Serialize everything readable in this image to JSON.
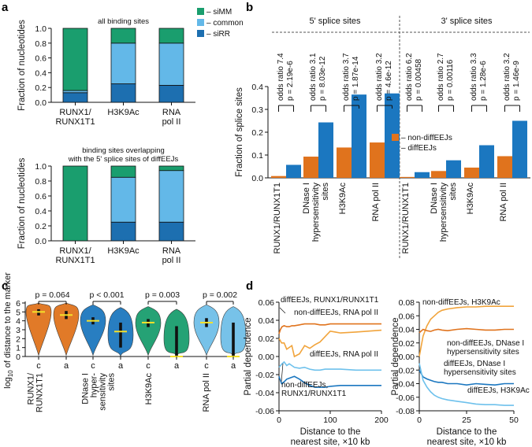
{
  "panel_labels": {
    "a": "a",
    "b": "b",
    "c": "c",
    "d": "d"
  },
  "colors": {
    "siMM": "#1a9e6e",
    "common": "#63b8e8",
    "siRR": "#1d6fb0",
    "orange": "#e0731d",
    "blue": "#1b77c0",
    "light_orange": "#f1a43c",
    "light_blue": "#6ec1ec",
    "violin_green": "#1a9e6e",
    "violin_blue": "#1d78be",
    "violin_light": "#70bfe8",
    "median": "#f5e12a"
  },
  "chart_data": [
    {
      "id": "a1",
      "type": "bar",
      "stacked": true,
      "title": "all binding sites",
      "ylabel": "Fraction of nucleotides",
      "ylim": [
        0,
        1
      ],
      "yticks": [
        "0.0",
        "0.2",
        "0.4",
        "0.6",
        "0.8",
        "1.0"
      ],
      "categories": [
        "RUNX1/RUNX1T1",
        "H3K9Ac",
        "RNA pol II"
      ],
      "category_lines": [
        [
          "RUNX1/",
          "RUNX1T1"
        ],
        [
          "H3K9Ac"
        ],
        [
          "RNA",
          "pol II"
        ]
      ],
      "series": [
        {
          "name": "siRR",
          "values": [
            0.13,
            0.25,
            0.23
          ]
        },
        {
          "name": "common",
          "values": [
            0.03,
            0.55,
            0.57
          ]
        },
        {
          "name": "siMM",
          "values": [
            0.84,
            0.2,
            0.2
          ]
        }
      ],
      "legend": [
        "– siMM",
        "– common",
        "– siRR"
      ]
    },
    {
      "id": "a2",
      "type": "bar",
      "stacked": true,
      "title_lines": [
        "binding sites overlapping",
        "with the 5' splice sites of diffEEJs"
      ],
      "ylabel": "Fraction of nucleotides",
      "ylim": [
        0,
        1
      ],
      "yticks": [
        "0.0",
        "0.2",
        "0.4",
        "0.6",
        "0.8",
        "1.0"
      ],
      "categories": [
        "RUNX1/RUNX1T1",
        "H3K9Ac",
        "RNA pol II"
      ],
      "category_lines": [
        [
          "RUNX1/",
          "RUNX1T1"
        ],
        [
          "H3K9Ac"
        ],
        [
          "RNA",
          "pol II"
        ]
      ],
      "series": [
        {
          "name": "siRR",
          "values": [
            0.0,
            0.25,
            0.25
          ]
        },
        {
          "name": "common",
          "values": [
            0.0,
            0.6,
            0.69
          ]
        },
        {
          "name": "siMM",
          "values": [
            1.0,
            0.15,
            0.06
          ]
        }
      ]
    },
    {
      "id": "b",
      "type": "bar",
      "ylabel": "Fraction of splice sites",
      "ylim": [
        0,
        0.4
      ],
      "yticks": [
        "0.0",
        "0.1",
        "0.2",
        "0.3",
        "0.4"
      ],
      "group_titles": [
        "5' splice sites",
        "3' splice sites"
      ],
      "categories": [
        "RUNX1/RUNX1T1",
        "DNase I hypersensitivity sites",
        "H3K9Ac",
        "RNA pol II",
        "RUNX1/RUNX1T1",
        "DNase I hypersensitivity sites",
        "H3K9Ac",
        "RNA pol II"
      ],
      "category_lines": [
        [
          "RUNX1/RUNX1T1"
        ],
        [
          "DNase I",
          "hypersensitivity",
          "sites"
        ],
        [
          "H3K9Ac"
        ],
        [
          "RNA pol II"
        ],
        [
          "RUNX1/RUNX1T1"
        ],
        [
          "DNase I",
          "hypersensitivity",
          "sites"
        ],
        [
          "H3K9Ac"
        ],
        [
          "RNA pol II"
        ]
      ],
      "series": [
        {
          "name": "non-diffEEJs",
          "values": [
            0.008,
            0.093,
            0.133,
            0.155,
            0.004,
            0.03,
            0.045,
            0.095
          ]
        },
        {
          "name": "diffEEJs",
          "values": [
            0.057,
            0.243,
            0.365,
            0.37,
            0.025,
            0.077,
            0.143,
            0.25
          ]
        }
      ],
      "annotations": [
        {
          "odds": "odds ratio 7.4",
          "p": "p = 2.19e-6"
        },
        {
          "odds": "odds ratio 3.1",
          "p": "p = 8.03e-12"
        },
        {
          "odds": "odds ratio 3.7",
          "p": "p = 1.87e-14"
        },
        {
          "odds": "odds ratio 3.2",
          "p": "p = 4.6e-12"
        },
        {
          "odds": "odds ratio 6.2",
          "p": "p = 0.00458"
        },
        {
          "odds": "odds ratio 2.7",
          "p": "p = 0.00116"
        },
        {
          "odds": "odds ratio 3.3",
          "p": "p = 1.28e-6"
        },
        {
          "odds": "odds ratio 3.2",
          "p": "p = 1.46e-9"
        }
      ],
      "legend": [
        "– non-diffEEJs",
        "– diffEEJs"
      ]
    },
    {
      "id": "c",
      "type": "violin",
      "ylabel_prefix": "log",
      "ylabel_sub": "10",
      "ylabel_rest": " of distance to the marker",
      "ylim": [
        0,
        6
      ],
      "yticks": [
        "0",
        "1",
        "2",
        "3",
        "4",
        "5",
        "6"
      ],
      "pvalues": [
        "p = 0.064",
        "p < 0.001",
        "p = 0.003",
        "p = 0.002"
      ],
      "groups": [
        {
          "lines": [
            "RUNX1/",
            "RUNX1T1"
          ],
          "color": "orange",
          "violins": [
            {
              "label": "c",
              "median": 5.0,
              "q1": 4.6,
              "q3": 5.3,
              "min": 0.1,
              "max": 6.0
            },
            {
              "label": "a",
              "median": 4.65,
              "q1": 4.2,
              "q3": 5.1,
              "min": 0.1,
              "max": 6.0
            }
          ]
        },
        {
          "lines": [
            "DNase I",
            "hyper-",
            "sensitivity",
            "sites"
          ],
          "color": "violin_blue",
          "violins": [
            {
              "label": "c",
              "median": 4.0,
              "q1": 3.6,
              "q3": 4.4,
              "min": 0.1,
              "max": 5.8
            },
            {
              "label": "a",
              "median": 2.8,
              "q1": 1.0,
              "q3": 3.8,
              "min": 0.0,
              "max": 5.5
            }
          ]
        },
        {
          "lines": [
            "H3K9Ac"
          ],
          "color": "violin_green",
          "violins": [
            {
              "label": "c",
              "median": 3.8,
              "q1": 3.3,
              "q3": 4.2,
              "min": 0.1,
              "max": 5.6
            },
            {
              "label": "a",
              "median": 0.0,
              "q1": 0.0,
              "q3": 3.4,
              "min": 0.0,
              "max": 5.3
            }
          ]
        },
        {
          "lines": [
            "RNA pol II"
          ],
          "color": "violin_light",
          "violins": [
            {
              "label": "c",
              "median": 3.8,
              "q1": 3.3,
              "q3": 4.3,
              "min": 0.1,
              "max": 5.8
            },
            {
              "label": "a",
              "median": 0.0,
              "q1": 0.0,
              "q3": 3.8,
              "min": 0.0,
              "max": 5.6
            }
          ]
        }
      ]
    },
    {
      "id": "d1",
      "type": "line",
      "ylabel": "Partial dependence",
      "xlabel": [
        "Distance to the",
        "nearest site, ×10 kb"
      ],
      "xlim": [
        0,
        200
      ],
      "ylim": [
        -0.06,
        0.06
      ],
      "xticks": [
        "0",
        "100",
        "200"
      ],
      "yticks": [
        "-0.06",
        "-0.04",
        "-0.02",
        "0.00",
        "0.02",
        "0.04",
        "0.06"
      ],
      "series": [
        {
          "name": "diffEEJs, RUNX1/RUNX1T1",
          "color": "orange",
          "x": [
            0,
            3,
            6,
            10,
            15,
            20,
            25,
            30,
            40,
            50,
            60,
            70,
            80,
            90,
            100,
            120,
            150,
            200
          ],
          "y": [
            0.025,
            0.03,
            0.033,
            0.034,
            0.033,
            0.033,
            0.034,
            0.034,
            0.035,
            0.036,
            0.036,
            0.036,
            0.035,
            0.035,
            0.036,
            0.036,
            0.036,
            0.036
          ]
        },
        {
          "name": "non-diffEEJs, RNA pol II",
          "color": "light_orange",
          "x": [
            0,
            5,
            10,
            15,
            20,
            25,
            30,
            40,
            50,
            60,
            70,
            80,
            90,
            100,
            110,
            120,
            150,
            200
          ],
          "y": [
            0.02,
            0.015,
            0.015,
            0.008,
            0.01,
            0.012,
            0.0,
            0.003,
            0.012,
            0.009,
            0.013,
            0.016,
            0.022,
            0.028,
            0.027,
            0.026,
            0.027,
            0.029
          ]
        },
        {
          "name": "diffEEJs, RNA pol II",
          "color": "light_blue",
          "x": [
            0,
            3,
            6,
            10,
            15,
            20,
            25,
            30,
            40,
            50,
            60,
            70,
            80,
            90,
            100,
            120,
            150,
            200
          ],
          "y": [
            -0.012,
            -0.01,
            -0.008,
            -0.006,
            -0.01,
            -0.008,
            -0.01,
            -0.012,
            -0.013,
            -0.012,
            -0.014,
            -0.015,
            -0.015,
            -0.014,
            -0.014,
            -0.014,
            -0.015,
            -0.015
          ]
        },
        {
          "name": "non-diffEEJs, RUNX1/RUNX1T1",
          "color": "blue",
          "x": [
            0,
            5,
            10,
            15,
            20,
            25,
            30,
            40,
            50,
            60,
            70,
            80,
            90,
            100,
            120,
            150,
            200
          ],
          "y": [
            -0.022,
            -0.03,
            -0.028,
            -0.025,
            -0.024,
            -0.023,
            -0.022,
            -0.025,
            -0.029,
            -0.032,
            -0.034,
            -0.034,
            -0.034,
            -0.033,
            -0.032,
            -0.032,
            -0.032
          ]
        }
      ],
      "labels": [
        {
          "series": "diffEEJs, RUNX1/RUNX1T1",
          "lines": [
            "diffEEJs, RUNX1/RUNX1T1"
          ]
        },
        {
          "series": "non-diffEEJs, RNA pol II",
          "lines": [
            "non-diffEEJs, RNA pol II"
          ]
        },
        {
          "series": "diffEEJs, RNA pol II",
          "lines": [
            "diffEEJs, RNA pol II"
          ]
        },
        {
          "series": "non-diffEEJs, RUNX1/RUNX1T1",
          "lines": [
            "non-diffEEJs,",
            "RUNX1/RUNX1T1"
          ]
        }
      ]
    },
    {
      "id": "d2",
      "type": "line",
      "ylabel": "Partial dependence",
      "xlabel": [
        "Distance to the",
        "nearest site, ×10 kb"
      ],
      "xlim": [
        0,
        50
      ],
      "ylim": [
        -0.08,
        0.08
      ],
      "xticks": [
        "0",
        "25",
        "50"
      ],
      "yticks": [
        "-0.08",
        "-0.06",
        "-0.04",
        "-0.02",
        "0.00",
        "0.02",
        "0.04",
        "0.06",
        "0.08"
      ],
      "series": [
        {
          "name": "non-diffEEJs, H3K9Ac",
          "color": "light_orange",
          "x": [
            0,
            2,
            4,
            6,
            8,
            10,
            12,
            15,
            20,
            25,
            30,
            35,
            40,
            45,
            50
          ],
          "y": [
            0.0,
            0.03,
            0.045,
            0.055,
            0.06,
            0.065,
            0.068,
            0.07,
            0.072,
            0.073,
            0.073,
            0.074,
            0.074,
            0.074,
            0.074
          ]
        },
        {
          "name": "non-diffEEJs, DNase I hypersensitivity sites",
          "color": "orange",
          "x": [
            0,
            2,
            4,
            6,
            8,
            10,
            12,
            15,
            20,
            25,
            30,
            35,
            40,
            45,
            50
          ],
          "y": [
            0.035,
            0.04,
            0.038,
            0.037,
            0.039,
            0.04,
            0.039,
            0.038,
            0.04,
            0.041,
            0.04,
            0.039,
            0.039,
            0.04,
            0.04
          ]
        },
        {
          "name": "diffEEJs, DNase I hypersensitivity sites",
          "color": "blue",
          "x": [
            0,
            2,
            4,
            6,
            8,
            10,
            12,
            15,
            20,
            25,
            30,
            35,
            40,
            45,
            50
          ],
          "y": [
            -0.02,
            -0.03,
            -0.033,
            -0.035,
            -0.037,
            -0.038,
            -0.038,
            -0.04,
            -0.04,
            -0.042,
            -0.04,
            -0.041,
            -0.042,
            -0.04,
            -0.04
          ]
        },
        {
          "name": "diffEEJs, H3K9Ac",
          "color": "light_blue",
          "x": [
            0,
            2,
            4,
            6,
            8,
            10,
            12,
            15,
            20,
            25,
            30,
            35,
            40,
            45,
            50
          ],
          "y": [
            -0.01,
            -0.035,
            -0.045,
            -0.052,
            -0.057,
            -0.06,
            -0.062,
            -0.064,
            -0.066,
            -0.068,
            -0.07,
            -0.071,
            -0.071,
            -0.072,
            -0.072
          ]
        }
      ],
      "labels": [
        {
          "series": "non-diffEEJs, H3K9Ac",
          "lines": [
            "non-diffEEJs, H3K9Ac"
          ]
        },
        {
          "series": "non-diffEEJs, DNase I hypersensitivity sites",
          "lines": [
            "non-diffEEJs, DNase I",
            "hypersensitivity sites"
          ]
        },
        {
          "series": "diffEEJs, DNase I hypersensitivity sites",
          "lines": [
            "diffEEJs, DNase I",
            "hypersensitivity sites"
          ]
        },
        {
          "series": "diffEEJs, H3K9Ac",
          "lines": [
            "diffEEJs, H3K9Ac"
          ]
        }
      ]
    }
  ]
}
